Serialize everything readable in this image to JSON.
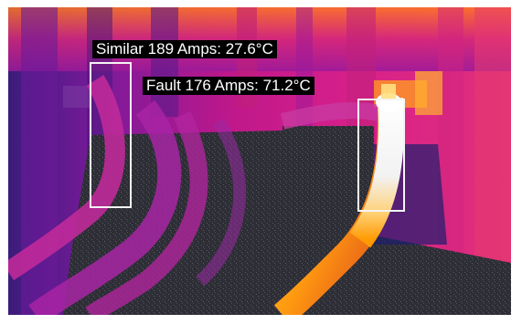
{
  "thermal_image": {
    "palette": "ironbow",
    "colors": {
      "hot": "#f4f4f4",
      "warm": "#ffb000",
      "mid": "#e0208a",
      "cool": "#5a1a9a",
      "cold": "#2d2d3a",
      "label_bg": "#000000",
      "label_text": "#ffffff",
      "roi_box": "#f4f4f4"
    },
    "annotations": [
      {
        "id": "similar",
        "text": "Similar 189 Amps: 27.6°C"
      },
      {
        "id": "fault",
        "text": "Fault 176 Amps: 71.2°C"
      }
    ]
  }
}
